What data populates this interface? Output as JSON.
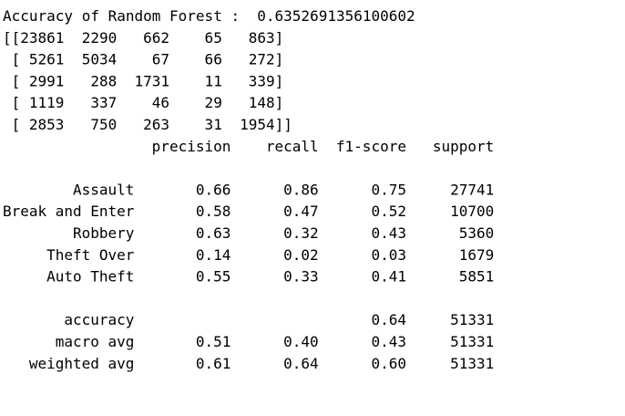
{
  "header": {
    "label": "Accuracy of Random Forest :",
    "value": "0.6352691356100602"
  },
  "confusion_matrix_lines": [
    "[[23861  2290   662    65   863]",
    " [ 5261  5034    67    66   272]",
    " [ 2991   288  1731    11   339]",
    " [ 1119   337    46    29   148]",
    " [ 2853   750   263    31  1954]]"
  ],
  "report": {
    "columns": [
      "precision",
      "recall",
      "f1-score",
      "support"
    ],
    "rows": [
      {
        "label": "Assault",
        "values": [
          "0.66",
          "0.86",
          "0.75",
          "27741"
        ]
      },
      {
        "label": "Break and Enter",
        "values": [
          "0.58",
          "0.47",
          "0.52",
          "10700"
        ]
      },
      {
        "label": "Robbery",
        "values": [
          "0.63",
          "0.32",
          "0.43",
          "5360"
        ]
      },
      {
        "label": "Theft Over",
        "values": [
          "0.14",
          "0.02",
          "0.03",
          "1679"
        ]
      },
      {
        "label": "Auto Theft",
        "values": [
          "0.55",
          "0.33",
          "0.41",
          "5851"
        ]
      }
    ],
    "summary": [
      {
        "label": "accuracy",
        "values": [
          null,
          null,
          "0.64",
          "51331"
        ]
      },
      {
        "label": "macro avg",
        "values": [
          "0.51",
          "0.40",
          "0.43",
          "51331"
        ]
      },
      {
        "label": "weighted avg",
        "values": [
          "0.61",
          "0.64",
          "0.60",
          "51331"
        ]
      }
    ]
  }
}
